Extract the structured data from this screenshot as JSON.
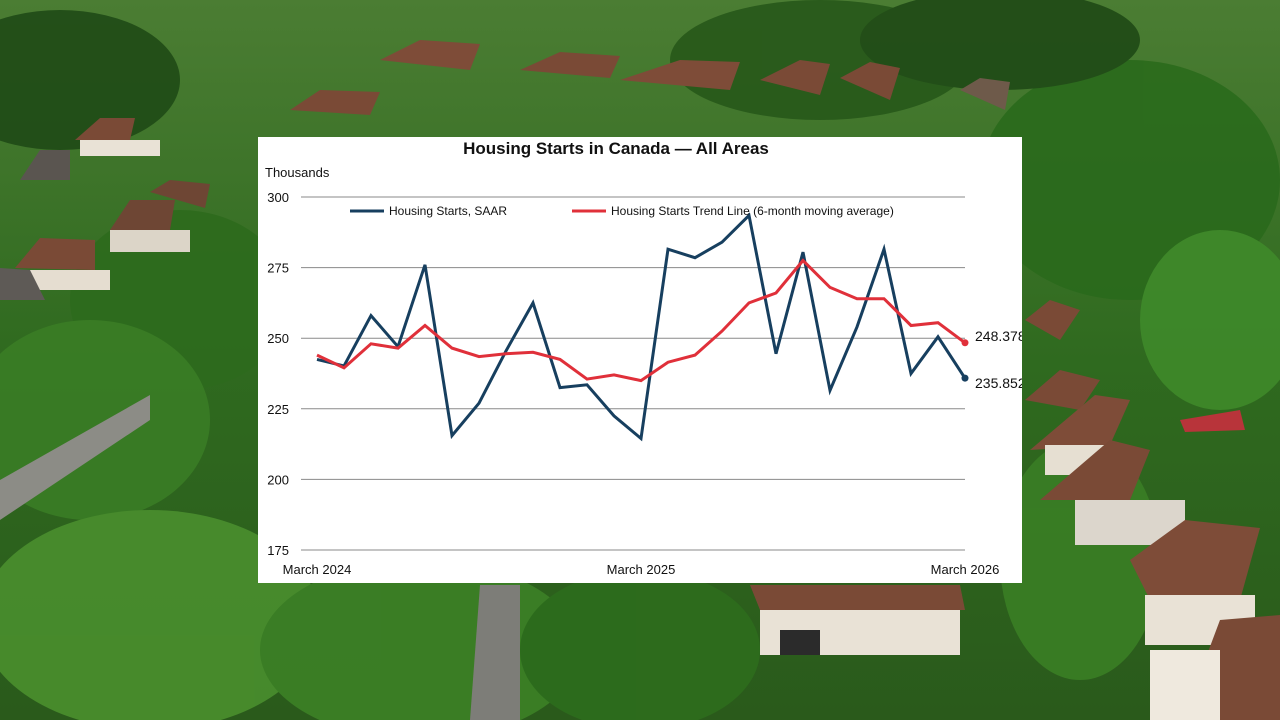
{
  "background": {
    "description_colors": {
      "sky_foliage": "#3f7d2a",
      "dark_foliage": "#1f4a16",
      "roof": "#7a4a36",
      "wall": "#e9e2d6",
      "road": "#8c8c86"
    }
  },
  "chart_data": {
    "type": "line",
    "title": "Housing Starts in Canada — All Areas",
    "ylabel": "Thousands",
    "xlabel": "",
    "ylim": [
      175,
      300
    ],
    "yticks": [
      175,
      200,
      225,
      250,
      275,
      300
    ],
    "x": [
      "2024-03",
      "2024-04",
      "2024-05",
      "2024-06",
      "2024-07",
      "2024-08",
      "2024-09",
      "2024-10",
      "2024-11",
      "2024-12",
      "2025-01",
      "2025-02",
      "2025-03",
      "2025-04",
      "2025-05",
      "2025-06",
      "2025-07",
      "2025-08",
      "2025-09",
      "2025-10",
      "2025-11",
      "2025-12",
      "2026-01",
      "2026-02",
      "2026-03"
    ],
    "xtick_labels": [
      {
        "x": "2024-03",
        "label": "March 2024"
      },
      {
        "x": "2025-03",
        "label": "March 2025"
      },
      {
        "x": "2026-03",
        "label": "March 2026"
      }
    ],
    "grid": "horizontal",
    "legend_position": "top",
    "series": [
      {
        "name": "Housing Starts, SAAR",
        "color": "#173f5f",
        "values": [
          242.5,
          240.2,
          258.0,
          247.0,
          276.0,
          215.5,
          227.0,
          245.5,
          262.5,
          232.5,
          233.5,
          222.5,
          214.5,
          281.5,
          278.5,
          284.0,
          293.5,
          244.5,
          280.5,
          231.5,
          254.0,
          281.5,
          237.5,
          250.5,
          235.852
        ],
        "end_label": "235.852"
      },
      {
        "name": "Housing Starts Trend Line (6-month moving average)",
        "color": "#e0303a",
        "values": [
          244.0,
          239.5,
          248.0,
          246.5,
          254.5,
          246.5,
          243.5,
          244.5,
          245.0,
          242.5,
          235.5,
          237.0,
          235.0,
          241.5,
          244.0,
          252.5,
          262.5,
          266.0,
          277.5,
          268.0,
          264.0,
          264.0,
          254.5,
          255.5,
          248.378
        ],
        "end_label": "248.378"
      }
    ]
  }
}
